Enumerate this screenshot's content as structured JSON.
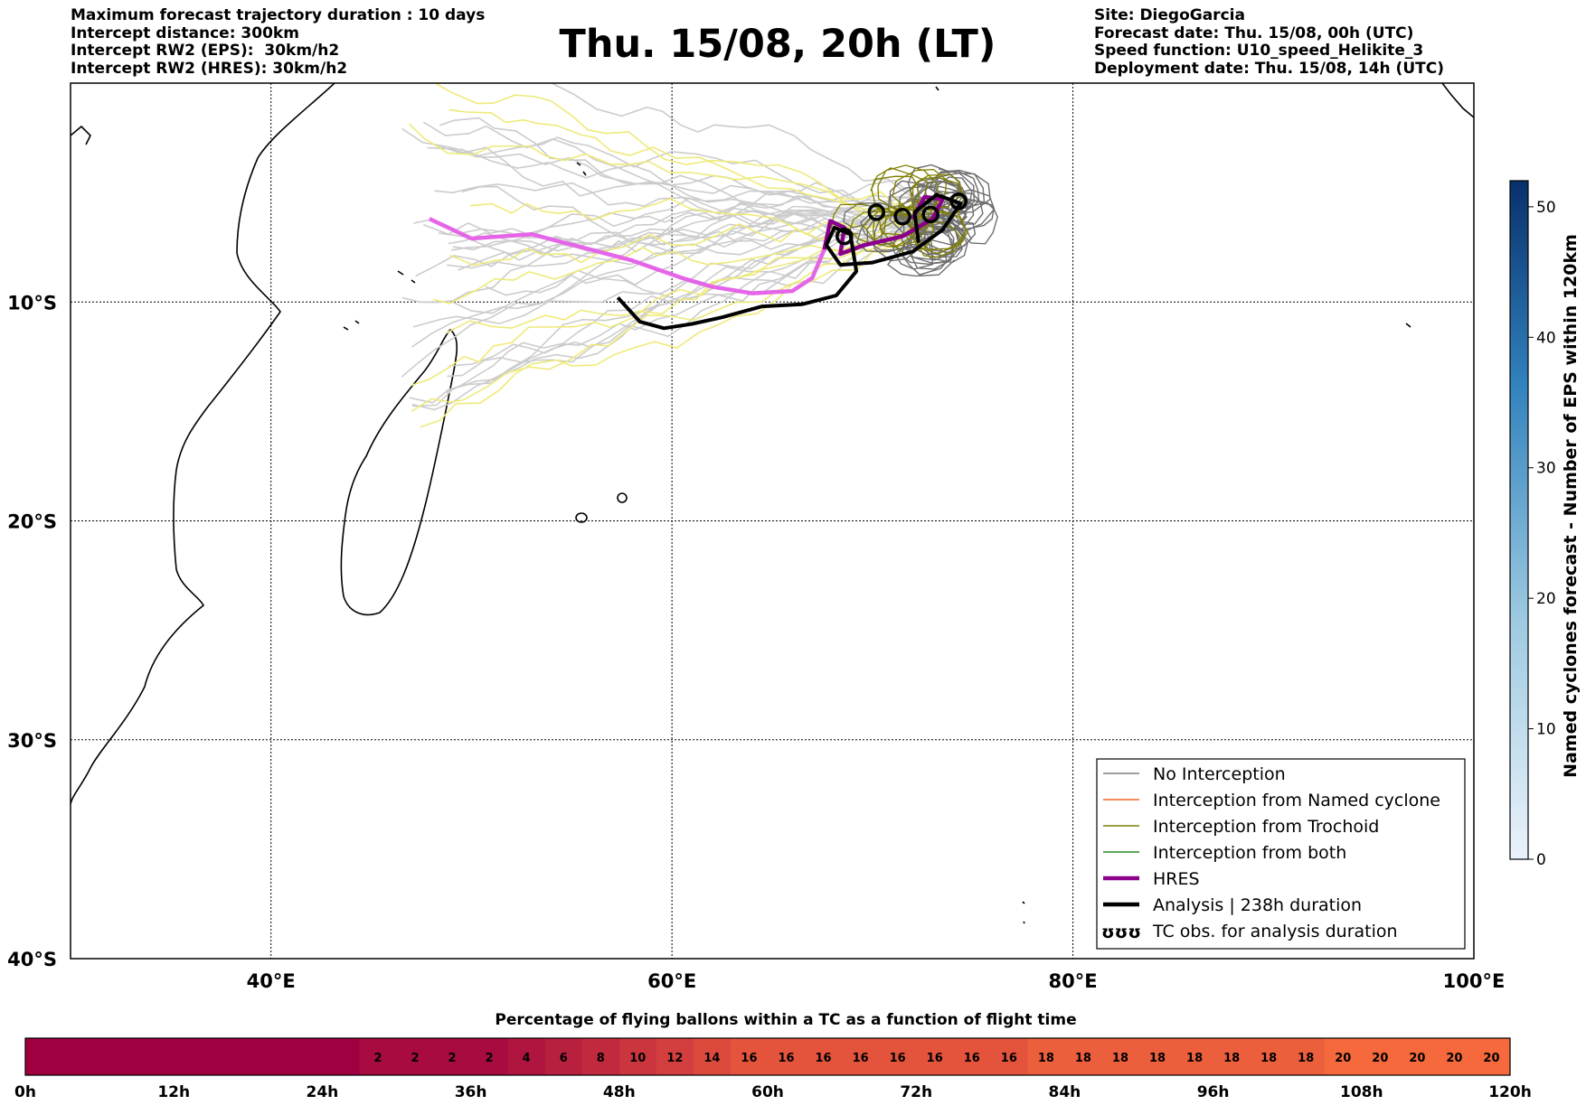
{
  "header": {
    "title": "Thu. 15/08, 20h (LT)",
    "left_lines": [
      "Maximum forecast trajectory duration : 10 days",
      "Intercept distance: 300km",
      "Intercept RW2 (EPS):  30km/h2",
      "Intercept RW2 (HRES): 30km/h2"
    ],
    "right_lines": [
      "Site: DiegoGarcia",
      "Forecast date: Thu. 15/08, 00h (UTC)",
      "Speed function: U10_speed_Helikite_3",
      "Deployment date: Thu. 15/08, 14h (UTC)"
    ]
  },
  "map": {
    "region": "South-West Indian Ocean",
    "lon_range": [
      30,
      100
    ],
    "lat_range": [
      -40,
      0
    ],
    "lon_ticks": [
      {
        "lon": 40,
        "label": "40°E"
      },
      {
        "lon": 60,
        "label": "60°E"
      },
      {
        "lon": 80,
        "label": "80°E"
      },
      {
        "lon": 100,
        "label": "100°E"
      }
    ],
    "lat_ticks": [
      {
        "lat": -10,
        "label": "10°S"
      },
      {
        "lat": -20,
        "label": "20°S"
      },
      {
        "lat": -30,
        "label": "30°S"
      },
      {
        "lat": -40,
        "label": "40°S"
      }
    ],
    "hres_track": [
      [
        47.9,
        -6.2
      ],
      [
        50,
        -7.1
      ],
      [
        53,
        -6.9
      ],
      [
        55.5,
        -7.5
      ],
      [
        58,
        -8.1
      ],
      [
        60.5,
        -8.9
      ],
      [
        62,
        -9.3
      ],
      [
        64,
        -9.6
      ],
      [
        66,
        -9.5
      ],
      [
        67,
        -8.9
      ],
      [
        67.6,
        -7.6
      ]
    ],
    "analysis_track": [
      [
        57.3,
        -9.8
      ],
      [
        58.4,
        -10.9
      ],
      [
        59.6,
        -11.2
      ],
      [
        61,
        -11
      ],
      [
        62.5,
        -10.7
      ],
      [
        64.5,
        -10.2
      ],
      [
        66.5,
        -10.1
      ],
      [
        68.2,
        -9.7
      ],
      [
        69.2,
        -8.6
      ],
      [
        68.9,
        -6.9
      ],
      [
        68.1,
        -6.6
      ],
      [
        67.7,
        -7.4
      ],
      [
        68.4,
        -8.3
      ],
      [
        70,
        -8.2
      ],
      [
        72,
        -7.7
      ],
      [
        73.5,
        -6.7
      ],
      [
        74.4,
        -5.5
      ],
      [
        73.2,
        -5.1
      ],
      [
        72.1,
        -5.9
      ],
      [
        72.3,
        -7.3
      ]
    ]
  },
  "legend": {
    "items": [
      {
        "label": "No Interception",
        "color": "#808080",
        "style": "thin"
      },
      {
        "label": "Interception from Named cyclone",
        "color": "#f26522",
        "style": "thin"
      },
      {
        "label": "Interception from Trochoid",
        "color": "#7f7f00",
        "style": "thin"
      },
      {
        "label": "Interception from both",
        "color": "#228b22",
        "style": "thin"
      },
      {
        "label": "HRES",
        "color": "#8b008b",
        "style": "thick"
      },
      {
        "label": "Analysis | 238h duration",
        "color": "#000000",
        "style": "thick"
      },
      {
        "label": "TC obs. for analysis duration",
        "color": "#000000",
        "style": "symbol",
        "symbol": "ʊʊʊ"
      }
    ]
  },
  "colorbar_right": {
    "label": "Named cyclones forecast - Number of EPS within 120km",
    "ticks": [
      "0",
      "10",
      "20",
      "30",
      "40",
      "50"
    ],
    "max": 52,
    "color_low": "#eaf2fb",
    "color_high": "#08306b"
  },
  "colorbar_bottom": {
    "title": "Percentage of flying ballons within a TC as a function of flight time",
    "time_labels": [
      "0h",
      "12h",
      "24h",
      "36h",
      "48h",
      "60h",
      "72h",
      "84h",
      "96h",
      "108h",
      "120h"
    ],
    "cells": [
      0,
      0,
      0,
      0,
      0,
      0,
      0,
      0,
      0,
      2,
      2,
      2,
      2,
      4,
      6,
      8,
      10,
      12,
      14,
      16,
      16,
      16,
      16,
      16,
      16,
      16,
      16,
      18,
      18,
      18,
      18,
      18,
      18,
      18,
      18,
      20,
      20,
      20,
      20,
      20
    ],
    "max_value": 20
  }
}
